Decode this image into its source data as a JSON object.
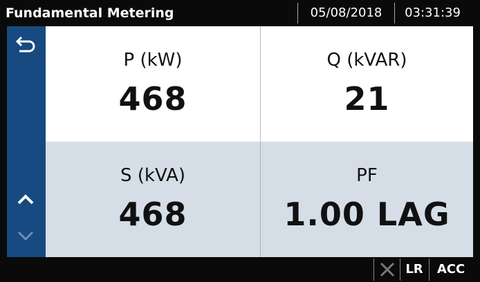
{
  "header": {
    "title": "Fundamental Metering",
    "date": "05/08/2018",
    "time": "03:31:39"
  },
  "cells": [
    {
      "label": "P (kW)",
      "value": "468"
    },
    {
      "label": "Q (kVAR)",
      "value": "21"
    },
    {
      "label": "S (kVA)",
      "value": "468"
    },
    {
      "label": "PF",
      "value": "1.00 LAG"
    }
  ],
  "footer": {
    "status": [
      "LR",
      "ACC"
    ]
  }
}
